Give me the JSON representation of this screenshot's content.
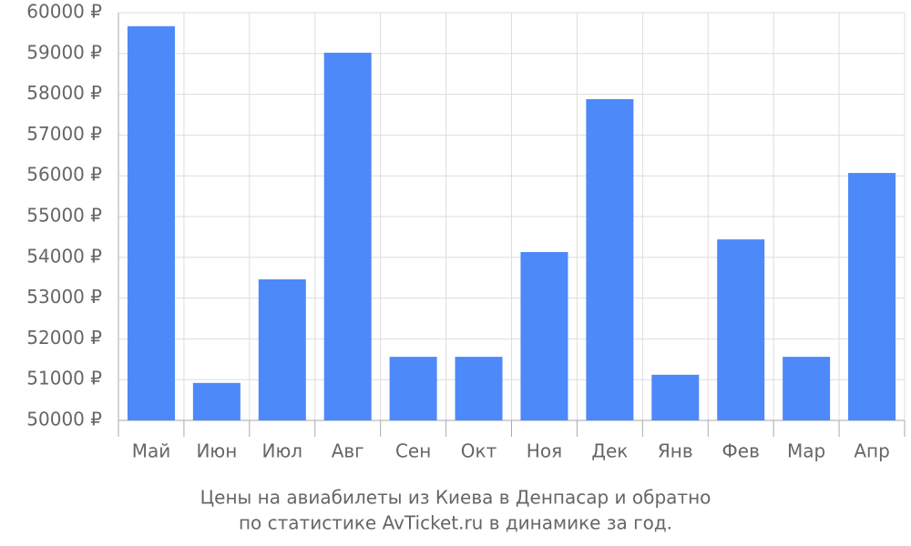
{
  "chart_data": {
    "type": "bar",
    "title": "Цены на авиабилеты из Киева в Денпасар и обратно",
    "subtitle": "по статистике AvTicket.ru в динамике за год.",
    "categories": [
      "Май",
      "Июн",
      "Июл",
      "Авг",
      "Сен",
      "Окт",
      "Ноя",
      "Дек",
      "Янв",
      "Фев",
      "Мар",
      "Апр"
    ],
    "values": [
      59670,
      50920,
      53460,
      59020,
      51560,
      51560,
      54130,
      57880,
      51120,
      54440,
      51560,
      56070
    ],
    "color": "#4d89f9",
    "ylim": [
      50000,
      60000
    ],
    "yticks": [
      {
        "value": 50000,
        "label": "50000 ₽"
      },
      {
        "value": 51000,
        "label": "51000 ₽"
      },
      {
        "value": 52000,
        "label": "52000 ₽"
      },
      {
        "value": 53000,
        "label": "53000 ₽"
      },
      {
        "value": 54000,
        "label": "54000 ₽"
      },
      {
        "value": 55000,
        "label": "55000 ₽"
      },
      {
        "value": 56000,
        "label": "56000 ₽"
      },
      {
        "value": 57000,
        "label": "57000 ₽"
      },
      {
        "value": 58000,
        "label": "58000 ₽"
      },
      {
        "value": 59000,
        "label": "59000 ₽"
      },
      {
        "value": 60000,
        "label": "60000 ₽"
      }
    ],
    "grid": true
  }
}
